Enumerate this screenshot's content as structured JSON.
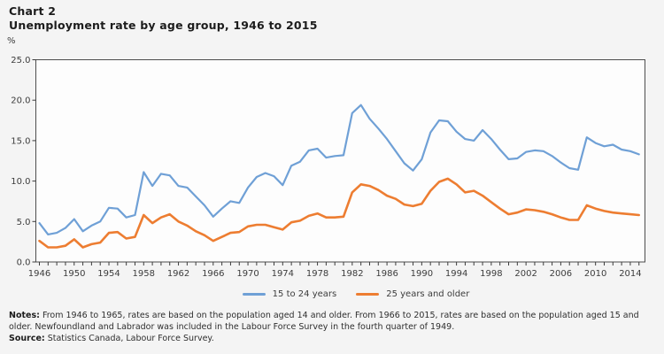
{
  "page": {
    "background": "#f4f4f4"
  },
  "header": {
    "chart_label": "Chart 2",
    "title": "Unemployment rate by age group, 1946 to 2015"
  },
  "chart_data": {
    "type": "line",
    "title": "Unemployment rate by age group, 1946 to 2015",
    "unit_label": "%",
    "xlabel": "",
    "ylabel": "%",
    "ylim": [
      0,
      25
    ],
    "ytick_values": [
      0,
      5,
      10,
      15,
      20,
      25
    ],
    "ytick_labels": [
      "0.0",
      "5.0",
      "10.0",
      "15.0",
      "20.0",
      "25.0"
    ],
    "grid": false,
    "legend_position": "bottom-center",
    "plot_border_color": "#4d4d4d",
    "plot_background": "#fdfdfd",
    "x_years": [
      1946,
      1947,
      1948,
      1949,
      1950,
      1951,
      1952,
      1953,
      1954,
      1955,
      1956,
      1957,
      1958,
      1959,
      1960,
      1961,
      1962,
      1963,
      1964,
      1965,
      1966,
      1967,
      1968,
      1969,
      1970,
      1971,
      1972,
      1973,
      1974,
      1975,
      1976,
      1977,
      1978,
      1979,
      1980,
      1981,
      1982,
      1983,
      1984,
      1985,
      1986,
      1987,
      1988,
      1989,
      1990,
      1991,
      1992,
      1993,
      1994,
      1995,
      1996,
      1997,
      1998,
      1999,
      2000,
      2001,
      2002,
      2003,
      2004,
      2005,
      2006,
      2007,
      2008,
      2009,
      2010,
      2011,
      2012,
      2013,
      2014,
      2015
    ],
    "xtick_labeled_years": [
      1946,
      1950,
      1954,
      1958,
      1962,
      1966,
      1970,
      1974,
      1978,
      1982,
      1986,
      1990,
      1994,
      1998,
      2002,
      2006,
      2010,
      2014
    ],
    "series": [
      {
        "name": "15 to 24 years",
        "color": "#6FA0D6",
        "stroke_width": 2.2,
        "values": [
          4.8,
          3.4,
          3.6,
          4.2,
          5.3,
          3.8,
          4.5,
          5.0,
          6.7,
          6.6,
          5.5,
          5.8,
          11.1,
          9.4,
          10.9,
          10.7,
          9.4,
          9.2,
          8.1,
          7.0,
          5.6,
          6.6,
          7.5,
          7.3,
          9.2,
          10.5,
          11.0,
          10.6,
          9.5,
          11.9,
          12.4,
          13.8,
          14.0,
          12.9,
          13.1,
          13.2,
          18.4,
          19.4,
          17.7,
          16.5,
          15.2,
          13.7,
          12.2,
          11.3,
          12.7,
          16.0,
          17.5,
          17.4,
          16.1,
          15.2,
          15.0,
          16.3,
          15.2,
          13.9,
          12.7,
          12.8,
          13.6,
          13.8,
          13.7,
          13.1,
          12.3,
          11.6,
          11.4,
          15.4,
          14.7,
          14.3,
          14.5,
          13.9,
          13.7,
          13.3
        ]
      },
      {
        "name": "25 years and older",
        "color": "#ED7D31",
        "stroke_width": 2.6,
        "values": [
          2.6,
          1.8,
          1.8,
          2.0,
          2.8,
          1.8,
          2.2,
          2.4,
          3.6,
          3.7,
          2.9,
          3.1,
          5.8,
          4.8,
          5.5,
          5.9,
          5.0,
          4.5,
          3.8,
          3.3,
          2.6,
          3.1,
          3.6,
          3.7,
          4.4,
          4.6,
          4.6,
          4.3,
          4.0,
          4.9,
          5.1,
          5.7,
          6.0,
          5.5,
          5.5,
          5.6,
          8.6,
          9.6,
          9.4,
          8.9,
          8.2,
          7.8,
          7.1,
          6.9,
          7.2,
          8.8,
          9.9,
          10.3,
          9.6,
          8.6,
          8.8,
          8.2,
          7.4,
          6.6,
          5.9,
          6.1,
          6.5,
          6.4,
          6.2,
          5.9,
          5.5,
          5.2,
          5.2,
          7.0,
          6.6,
          6.3,
          6.1,
          6.0,
          5.9,
          5.8
        ]
      }
    ]
  },
  "notes": {
    "label": "Notes:",
    "text": "From 1946 to 1965, rates are based on the population aged 14 and older. From 1966 to 2015, rates are based on the population aged 15 and older. Newfoundland and Labrador was included in the Labour Force Survey in the fourth quarter of 1949."
  },
  "source": {
    "label": "Source:",
    "text": "Statistics Canada, Labour Force Survey."
  }
}
